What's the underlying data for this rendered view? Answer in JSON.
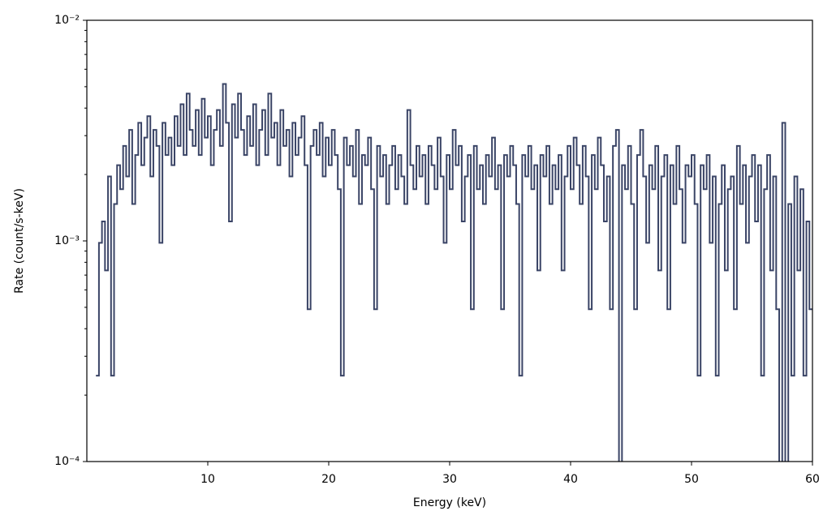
{
  "chart_data": {
    "type": "step",
    "x_label": "Energy (keV)",
    "y_label": "Rate (count/s-keV)",
    "xlim": [
      0,
      60
    ],
    "xticks": [
      10,
      20,
      30,
      40,
      50,
      60
    ],
    "ylim": [
      0.0001,
      0.01
    ],
    "log_y": true,
    "yticks": [
      {
        "value": 0.0001,
        "label": "10⁻⁴"
      },
      {
        "value": 0.001,
        "label": "10⁻³"
      },
      {
        "value": 0.01,
        "label": "10⁻²"
      }
    ],
    "yminorticks": [
      0.0002,
      0.0003,
      0.0004,
      0.0005,
      0.0006,
      0.0007,
      0.0008,
      0.0009,
      0.002,
      0.003,
      0.004,
      0.005,
      0.006,
      0.007,
      0.008,
      0.009
    ],
    "color": "#3a4466",
    "x": [
      0.75,
      1,
      1.25,
      1.5,
      1.75,
      2,
      2.25,
      2.5,
      2.75,
      3,
      3.25,
      3.5,
      3.75,
      4,
      4.25,
      4.5,
      4.75,
      5,
      5.25,
      5.5,
      5.75,
      6,
      6.25,
      6.5,
      6.75,
      7,
      7.25,
      7.5,
      7.75,
      8,
      8.25,
      8.5,
      8.75,
      9,
      9.25,
      9.5,
      9.75,
      10,
      10.25,
      10.5,
      10.75,
      11,
      11.25,
      11.5,
      11.75,
      12,
      12.25,
      12.5,
      12.75,
      13,
      13.25,
      13.5,
      13.75,
      14,
      14.25,
      14.5,
      14.75,
      15,
      15.25,
      15.5,
      15.75,
      16,
      16.25,
      16.5,
      16.75,
      17,
      17.25,
      17.5,
      17.75,
      18,
      18.25,
      18.5,
      18.75,
      19,
      19.25,
      19.5,
      19.75,
      20,
      20.25,
      20.5,
      20.75,
      21,
      21.25,
      21.5,
      21.75,
      22,
      22.25,
      22.5,
      22.75,
      23,
      23.25,
      23.5,
      23.75,
      24,
      24.25,
      24.5,
      24.75,
      25,
      25.25,
      25.5,
      25.75,
      26,
      26.25,
      26.5,
      26.75,
      27,
      27.25,
      27.5,
      27.75,
      28,
      28.25,
      28.5,
      28.75,
      29,
      29.25,
      29.5,
      29.75,
      30,
      30.25,
      30.5,
      30.75,
      31,
      31.25,
      31.5,
      31.75,
      32,
      32.25,
      32.5,
      32.75,
      33,
      33.25,
      33.5,
      33.75,
      34,
      34.25,
      34.5,
      34.75,
      35,
      35.25,
      35.5,
      35.75,
      36,
      36.25,
      36.5,
      36.75,
      37,
      37.25,
      37.5,
      37.75,
      38,
      38.25,
      38.5,
      38.75,
      39,
      39.25,
      39.5,
      39.75,
      40,
      40.25,
      40.5,
      40.75,
      41,
      41.25,
      41.5,
      41.75,
      42,
      42.25,
      42.5,
      42.75,
      43,
      43.25,
      43.5,
      43.75,
      44,
      44.25,
      44.5,
      44.75,
      45,
      45.25,
      45.5,
      45.75,
      46,
      46.25,
      46.5,
      46.75,
      47,
      47.25,
      47.5,
      47.75,
      48,
      48.25,
      48.5,
      48.75,
      49,
      49.25,
      49.5,
      49.75,
      50,
      50.25,
      50.5,
      50.75,
      51,
      51.25,
      51.5,
      51.75,
      52,
      52.25,
      52.5,
      52.75,
      53,
      53.25,
      53.5,
      53.75,
      54,
      54.25,
      54.5,
      54.75,
      55,
      55.25,
      55.5,
      55.75,
      56,
      56.25,
      56.5,
      56.75,
      57,
      57.25,
      57.5,
      57.75,
      58,
      58.25,
      58.5,
      58.75,
      59,
      59.25,
      59.5,
      59.75
    ],
    "values": [
      0.000245,
      0.00098,
      0.001225,
      0.000735,
      0.00196,
      0.000245,
      0.00147,
      0.002205,
      0.001715,
      0.002695,
      0.00196,
      0.003185,
      0.00147,
      0.00245,
      0.00343,
      0.002205,
      0.00294,
      0.003675,
      0.00196,
      0.003185,
      0.002695,
      0.00098,
      0.00343,
      0.00245,
      0.00294,
      0.002205,
      0.003675,
      0.002695,
      0.004165,
      0.00245,
      0.004655,
      0.003185,
      0.002695,
      0.00392,
      0.00245,
      0.00441,
      0.00294,
      0.003675,
      0.002205,
      0.003185,
      0.00392,
      0.002695,
      0.005145,
      0.00343,
      0.001225,
      0.004165,
      0.00294,
      0.004655,
      0.003185,
      0.00245,
      0.003675,
      0.002695,
      0.004165,
      0.002205,
      0.003185,
      0.00392,
      0.00245,
      0.004655,
      0.00294,
      0.00343,
      0.002205,
      0.00392,
      0.002695,
      0.003185,
      0.00196,
      0.00343,
      0.00245,
      0.00294,
      0.003675,
      0.002205,
      0.00049,
      0.002695,
      0.003185,
      0.00245,
      0.00343,
      0.00196,
      0.00294,
      0.002205,
      0.003185,
      0.00245,
      0.001715,
      0.000245,
      0.00294,
      0.002205,
      0.002695,
      0.00196,
      0.003185,
      0.00147,
      0.00245,
      0.002205,
      0.00294,
      0.001715,
      0.00049,
      0.002695,
      0.00196,
      0.00245,
      0.00147,
      0.002205,
      0.002695,
      0.001715,
      0.00245,
      0.00196,
      0.00147,
      0.00392,
      0.002205,
      0.001715,
      0.002695,
      0.00196,
      0.00245,
      0.00147,
      0.002695,
      0.002205,
      0.001715,
      0.00294,
      0.00196,
      0.00098,
      0.00245,
      0.001715,
      0.003185,
      0.002205,
      0.002695,
      0.001225,
      0.00196,
      0.00245,
      0.00049,
      0.002695,
      0.001715,
      0.002205,
      0.00147,
      0.00245,
      0.00196,
      0.00294,
      0.001715,
      0.002205,
      0.00049,
      0.00245,
      0.00196,
      0.002695,
      0.002205,
      0.00147,
      0.000245,
      0.00245,
      0.00196,
      0.002695,
      0.001715,
      0.002205,
      0.000735,
      0.00245,
      0.00196,
      0.002695,
      0.00147,
      0.002205,
      0.001715,
      0.00245,
      0.000735,
      0.00196,
      0.002695,
      0.001715,
      0.00294,
      0.002205,
      0.00147,
      0.002695,
      0.00196,
      0.00049,
      0.00245,
      0.001715,
      0.00294,
      0.002205,
      0.001225,
      0.00196,
      0.00049,
      0.002695,
      0.003185,
      0,
      0.002205,
      0.001715,
      0.002695,
      0.00147,
      0.00049,
      0.00245,
      0.003185,
      0.00196,
      0.00098,
      0.002205,
      0.001715,
      0.002695,
      0.000735,
      0.00196,
      0.00245,
      0.00049,
      0.002205,
      0.00147,
      0.002695,
      0.001715,
      0.00098,
      0.002205,
      0.00196,
      0.00245,
      0.00147,
      0.000245,
      0.002205,
      0.001715,
      0.00245,
      0.00098,
      0.00196,
      0.000245,
      0.00147,
      0.002205,
      0.000735,
      0.001715,
      0.00196,
      0.00049,
      0.002695,
      0.00147,
      0.002205,
      0.00098,
      0.00196,
      0.00245,
      0.001225,
      0.002205,
      0.000245,
      0.001715,
      0.00245,
      0.000735,
      0.00196,
      0.00049,
      0,
      0.00343,
      0,
      0.00147,
      0.000245,
      0.00196,
      0.000735,
      0.001715,
      0.000245,
      0.001225,
      0.00049
    ]
  }
}
